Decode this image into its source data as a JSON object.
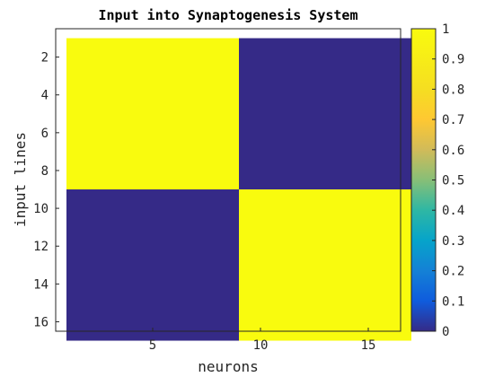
{
  "chart_data": {
    "type": "heatmap",
    "title": "Input into Synaptogenesis System",
    "xlabel": "neurons",
    "ylabel": "input lines",
    "x_range": [
      1,
      16
    ],
    "y_range": [
      1,
      16
    ],
    "x_ticks": [
      5,
      10,
      15
    ],
    "y_ticks": [
      2,
      4,
      6,
      8,
      10,
      12,
      14,
      16
    ],
    "y_reversed": true,
    "blocks": [
      {
        "rows": [
          1,
          8
        ],
        "cols": [
          1,
          8
        ],
        "value": 1
      },
      {
        "rows": [
          1,
          8
        ],
        "cols": [
          9,
          16
        ],
        "value": 0
      },
      {
        "rows": [
          9,
          16
        ],
        "cols": [
          1,
          8
        ],
        "value": 0
      },
      {
        "rows": [
          9,
          16
        ],
        "cols": [
          9,
          16
        ],
        "value": 1
      }
    ],
    "colorbar": {
      "min": 0,
      "max": 1,
      "ticks": [
        "0",
        "0.1",
        "0.2",
        "0.3",
        "0.4",
        "0.5",
        "0.6",
        "0.7",
        "0.8",
        "0.9",
        "1"
      ],
      "colormap": "parula",
      "low_color": "#352a87",
      "high_color": "#f9fb0e"
    }
  }
}
